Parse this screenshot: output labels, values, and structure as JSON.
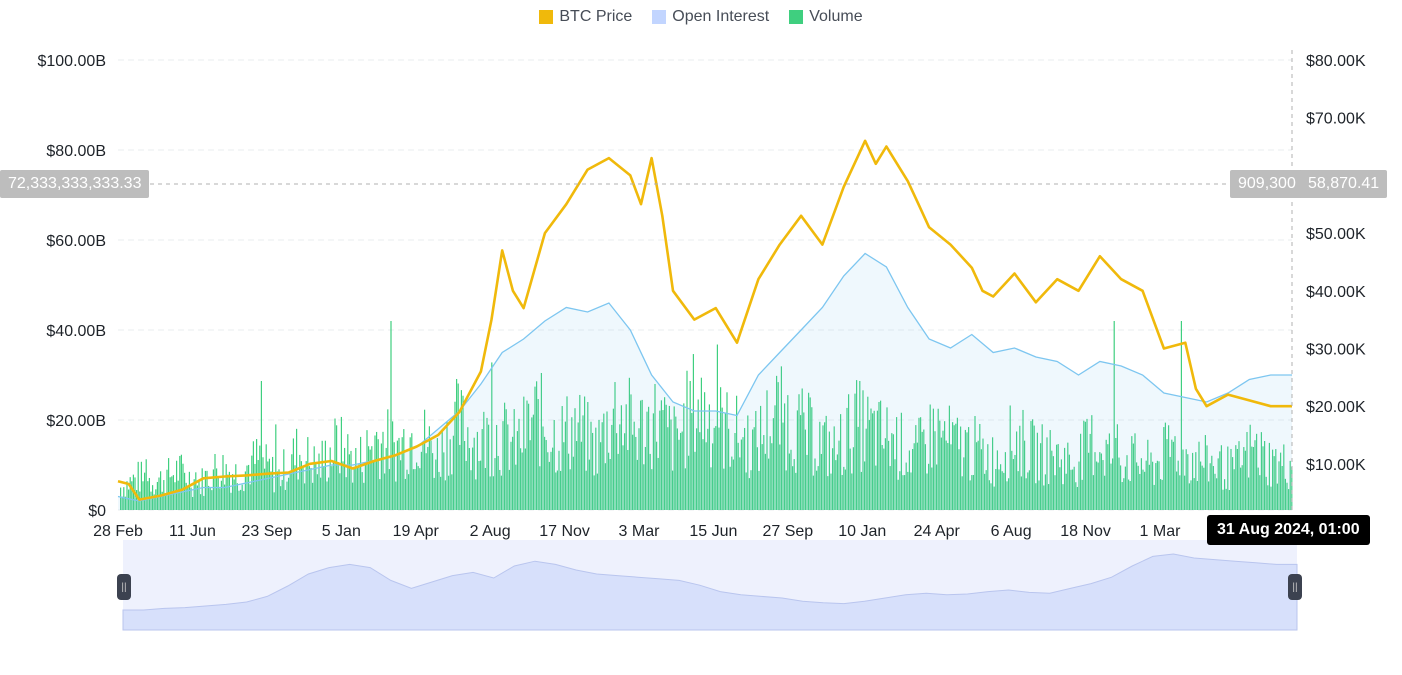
{
  "legend": [
    {
      "label": "BTC Price",
      "color": "#F0B90B"
    },
    {
      "label": "Open Interest",
      "color": "#C2D5FF"
    },
    {
      "label": "Volume",
      "color": "#3FCF7F"
    }
  ],
  "crosshair": {
    "left_value": "72,333,333,333.33",
    "volume_value": "909,300",
    "price_value": "58,870.41",
    "time": "31 Aug 2024, 01:00"
  },
  "chart_data": {
    "type": "line",
    "x_tick_labels": [
      "28 Feb",
      "11 Jun",
      "23 Sep",
      "5 Jan",
      "19 Apr",
      "2 Aug",
      "17 Nov",
      "3 Mar",
      "15 Jun",
      "27 Sep",
      "10 Jan",
      "24 Apr",
      "6 Aug",
      "18 Nov",
      "1 Mar"
    ],
    "y_left_ticks": [
      "$0",
      "$20.00B",
      "$40.00B",
      "$60.00B",
      "$80.00B",
      "$100.00B"
    ],
    "y_left_range": [
      0,
      100
    ],
    "y_right_ticks": [
      "$10.00K",
      "$20.00K",
      "$30.00K",
      "$40.00K",
      "$50.00K",
      "$60.00K",
      "$70.00K",
      "$80.00K"
    ],
    "y_right_range": [
      2000,
      80000
    ],
    "x_range": [
      0,
      110
    ],
    "grid": true,
    "legend_position": "top-center",
    "series": [
      {
        "name": "BTC Price",
        "axis": "right",
        "color": "#F0B90B",
        "points": [
          [
            0,
            7000
          ],
          [
            1,
            6500
          ],
          [
            2,
            3800
          ],
          [
            4,
            4500
          ],
          [
            6,
            5500
          ],
          [
            8,
            7500
          ],
          [
            10,
            7800
          ],
          [
            12,
            8000
          ],
          [
            14,
            8300
          ],
          [
            16,
            8500
          ],
          [
            18,
            10000
          ],
          [
            20,
            10500
          ],
          [
            22,
            9200
          ],
          [
            24,
            10500
          ],
          [
            26,
            11500
          ],
          [
            28,
            13000
          ],
          [
            30,
            15000
          ],
          [
            32,
            19000
          ],
          [
            34,
            26000
          ],
          [
            35,
            35000
          ],
          [
            36,
            47000
          ],
          [
            37,
            40000
          ],
          [
            38,
            37000
          ],
          [
            40,
            50000
          ],
          [
            42,
            55000
          ],
          [
            44,
            61000
          ],
          [
            46,
            63000
          ],
          [
            48,
            60000
          ],
          [
            49,
            55000
          ],
          [
            50,
            63000
          ],
          [
            51,
            53000
          ],
          [
            52,
            40000
          ],
          [
            54,
            35000
          ],
          [
            56,
            37000
          ],
          [
            58,
            31000
          ],
          [
            60,
            42000
          ],
          [
            62,
            48000
          ],
          [
            64,
            53000
          ],
          [
            66,
            48000
          ],
          [
            68,
            58000
          ],
          [
            70,
            66000
          ],
          [
            71,
            62000
          ],
          [
            72,
            65000
          ],
          [
            74,
            59000
          ],
          [
            75,
            55000
          ],
          [
            76,
            51000
          ],
          [
            78,
            48000
          ],
          [
            80,
            44000
          ],
          [
            81,
            40000
          ],
          [
            82,
            39000
          ],
          [
            84,
            43000
          ],
          [
            86,
            38000
          ],
          [
            88,
            42000
          ],
          [
            90,
            40000
          ],
          [
            92,
            46000
          ],
          [
            94,
            42000
          ],
          [
            96,
            40000
          ],
          [
            98,
            30000
          ],
          [
            100,
            31000
          ],
          [
            101,
            23000
          ],
          [
            102,
            20000
          ],
          [
            104,
            22000
          ],
          [
            106,
            21000
          ],
          [
            108,
            20000
          ],
          [
            110,
            20000
          ]
        ]
      },
      {
        "name": "Open Interest",
        "axis": "left",
        "color": "#7DC6F0",
        "points": [
          [
            0,
            3
          ],
          [
            2,
            2
          ],
          [
            4,
            3
          ],
          [
            6,
            4
          ],
          [
            8,
            5
          ],
          [
            10,
            5
          ],
          [
            12,
            6
          ],
          [
            14,
            7
          ],
          [
            16,
            8
          ],
          [
            18,
            9
          ],
          [
            20,
            10
          ],
          [
            22,
            10
          ],
          [
            24,
            11
          ],
          [
            26,
            12
          ],
          [
            28,
            14
          ],
          [
            30,
            18
          ],
          [
            32,
            22
          ],
          [
            34,
            28
          ],
          [
            36,
            35
          ],
          [
            38,
            38
          ],
          [
            40,
            42
          ],
          [
            42,
            45
          ],
          [
            44,
            44
          ],
          [
            46,
            46
          ],
          [
            48,
            40
          ],
          [
            50,
            30
          ],
          [
            52,
            24
          ],
          [
            54,
            22
          ],
          [
            56,
            22
          ],
          [
            58,
            21
          ],
          [
            60,
            30
          ],
          [
            62,
            35
          ],
          [
            64,
            40
          ],
          [
            66,
            45
          ],
          [
            68,
            52
          ],
          [
            70,
            57
          ],
          [
            72,
            54
          ],
          [
            74,
            45
          ],
          [
            76,
            38
          ],
          [
            78,
            36
          ],
          [
            80,
            39
          ],
          [
            82,
            35
          ],
          [
            84,
            36
          ],
          [
            86,
            34
          ],
          [
            88,
            33
          ],
          [
            90,
            30
          ],
          [
            92,
            33
          ],
          [
            94,
            32
          ],
          [
            96,
            30
          ],
          [
            98,
            26
          ],
          [
            100,
            25
          ],
          [
            102,
            24
          ],
          [
            104,
            26
          ],
          [
            106,
            29
          ],
          [
            108,
            30
          ],
          [
            110,
            30
          ]
        ]
      }
    ],
    "volume_profile": [
      6,
      9,
      8,
      11,
      7,
      12,
      10,
      14,
      9,
      16,
      12,
      18,
      13,
      20,
      17,
      22,
      15,
      24,
      19,
      21,
      18,
      26,
      20,
      23,
      17,
      28,
      22,
      25,
      19,
      30,
      24,
      21,
      18,
      27,
      23,
      20,
      16,
      24,
      21,
      19,
      15,
      22,
      18,
      17,
      14,
      20,
      16,
      15,
      13,
      19,
      15,
      14,
      12,
      18,
      14,
      13,
      11,
      17,
      13,
      12
    ],
    "navigator_profile": [
      0.25,
      0.25,
      0.27,
      0.28,
      0.3,
      0.32,
      0.35,
      0.42,
      0.55,
      0.7,
      0.78,
      0.82,
      0.78,
      0.62,
      0.52,
      0.6,
      0.68,
      0.72,
      0.65,
      0.8,
      0.86,
      0.82,
      0.75,
      0.7,
      0.68,
      0.66,
      0.64,
      0.62,
      0.56,
      0.48,
      0.44,
      0.42,
      0.4,
      0.36,
      0.34,
      0.33,
      0.36,
      0.4,
      0.44,
      0.46,
      0.44,
      0.45,
      0.48,
      0.5,
      0.47,
      0.46,
      0.52,
      0.58,
      0.66,
      0.8,
      0.92,
      0.95,
      0.9,
      0.88,
      0.86,
      0.84,
      0.82,
      0.82
    ]
  }
}
